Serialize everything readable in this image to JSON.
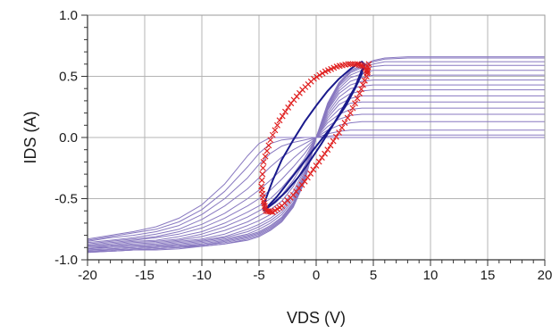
{
  "chart_data": {
    "type": "line",
    "xlabel": "VDS (V)",
    "ylabel": "IDS (A)",
    "xlim": [
      -20,
      20
    ],
    "ylim": [
      -1.0,
      1.0
    ],
    "x_ticks": [
      -20,
      -15,
      -10,
      -5,
      0,
      5,
      10,
      15,
      20
    ],
    "x_tick_labels": [
      "-20",
      "-15",
      "-10",
      "-5",
      "0",
      "5",
      "10",
      "15",
      "20"
    ],
    "y_ticks": [
      -1.0,
      -0.5,
      0.0,
      0.5,
      1.0
    ],
    "y_tick_labels": [
      "-1.0",
      "-0.5",
      "0.0",
      "0.5",
      "1.0"
    ],
    "grid": true,
    "legend": "none",
    "colors": {
      "curves": "#8878c0",
      "loop_measured": "#1a1a8c",
      "loop_simulated": "#e02020",
      "grid": "#b4b4b4",
      "axis": "#333333"
    },
    "curve_family": {
      "description_count": 18,
      "x": [
        -20,
        -18,
        -16,
        -14,
        -12,
        -10,
        -8,
        -6,
        -5,
        -4,
        -3,
        -2,
        -1,
        0,
        1,
        2,
        3,
        4,
        5,
        6,
        8,
        10,
        14,
        20
      ],
      "series": [
        {
          "values": [
            -0.83,
            -0.8,
            -0.77,
            -0.73,
            -0.66,
            -0.55,
            -0.38,
            -0.15,
            -0.05,
            0.0,
            0.0,
            0.0,
            0.0,
            0.0,
            0.0,
            0.0,
            0.0,
            0.0,
            0.0,
            0.0,
            0.0,
            0.0,
            0.0,
            0.0
          ]
        },
        {
          "values": [
            -0.84,
            -0.81,
            -0.78,
            -0.75,
            -0.69,
            -0.59,
            -0.44,
            -0.24,
            -0.13,
            -0.05,
            -0.02,
            -0.01,
            0.0,
            0.0,
            0.0,
            0.0,
            0.0,
            0.0,
            0.0,
            0.0,
            0.0,
            0.0,
            0.0,
            0.0
          ]
        },
        {
          "values": [
            -0.85,
            -0.82,
            -0.8,
            -0.77,
            -0.72,
            -0.63,
            -0.5,
            -0.33,
            -0.22,
            -0.13,
            -0.07,
            -0.04,
            -0.02,
            0.0,
            0.01,
            0.02,
            0.02,
            0.02,
            0.02,
            0.02,
            0.02,
            0.02,
            0.02,
            0.02
          ]
        },
        {
          "values": [
            -0.86,
            -0.84,
            -0.82,
            -0.79,
            -0.75,
            -0.67,
            -0.56,
            -0.42,
            -0.33,
            -0.24,
            -0.16,
            -0.1,
            -0.05,
            0.0,
            0.03,
            0.05,
            0.06,
            0.06,
            0.06,
            0.06,
            0.06,
            0.06,
            0.06,
            0.06
          ]
        },
        {
          "values": [
            -0.87,
            -0.85,
            -0.83,
            -0.81,
            -0.77,
            -0.71,
            -0.62,
            -0.5,
            -0.43,
            -0.35,
            -0.26,
            -0.17,
            -0.09,
            0.0,
            0.06,
            0.1,
            0.12,
            0.13,
            0.13,
            0.13,
            0.13,
            0.13,
            0.13,
            0.13
          ]
        },
        {
          "values": [
            -0.88,
            -0.86,
            -0.84,
            -0.82,
            -0.79,
            -0.74,
            -0.66,
            -0.56,
            -0.5,
            -0.43,
            -0.34,
            -0.24,
            -0.13,
            0.0,
            0.09,
            0.15,
            0.18,
            0.19,
            0.19,
            0.19,
            0.19,
            0.19,
            0.19,
            0.19
          ]
        },
        {
          "values": [
            -0.89,
            -0.87,
            -0.85,
            -0.84,
            -0.81,
            -0.77,
            -0.7,
            -0.61,
            -0.56,
            -0.5,
            -0.41,
            -0.3,
            -0.17,
            0.0,
            0.12,
            0.19,
            0.23,
            0.24,
            0.24,
            0.24,
            0.24,
            0.24,
            0.24,
            0.24
          ]
        },
        {
          "values": [
            -0.89,
            -0.88,
            -0.86,
            -0.85,
            -0.83,
            -0.79,
            -0.73,
            -0.65,
            -0.6,
            -0.55,
            -0.47,
            -0.35,
            -0.2,
            0.0,
            0.14,
            0.23,
            0.28,
            0.29,
            0.29,
            0.29,
            0.29,
            0.29,
            0.29,
            0.29
          ]
        },
        {
          "values": [
            -0.9,
            -0.89,
            -0.87,
            -0.86,
            -0.84,
            -0.81,
            -0.76,
            -0.69,
            -0.64,
            -0.59,
            -0.52,
            -0.4,
            -0.23,
            0.0,
            0.16,
            0.27,
            0.32,
            0.34,
            0.34,
            0.34,
            0.34,
            0.34,
            0.34,
            0.34
          ]
        },
        {
          "values": [
            -0.91,
            -0.89,
            -0.88,
            -0.87,
            -0.85,
            -0.83,
            -0.79,
            -0.72,
            -0.68,
            -0.63,
            -0.56,
            -0.44,
            -0.26,
            0.0,
            0.18,
            0.3,
            0.36,
            0.38,
            0.39,
            0.39,
            0.39,
            0.39,
            0.39,
            0.39
          ]
        },
        {
          "values": [
            -0.91,
            -0.9,
            -0.89,
            -0.88,
            -0.86,
            -0.84,
            -0.81,
            -0.75,
            -0.71,
            -0.66,
            -0.59,
            -0.47,
            -0.28,
            0.0,
            0.2,
            0.33,
            0.4,
            0.42,
            0.43,
            0.43,
            0.43,
            0.43,
            0.43,
            0.43
          ]
        },
        {
          "values": [
            -0.92,
            -0.91,
            -0.9,
            -0.89,
            -0.87,
            -0.85,
            -0.82,
            -0.77,
            -0.73,
            -0.68,
            -0.61,
            -0.49,
            -0.3,
            0.0,
            0.22,
            0.36,
            0.43,
            0.46,
            0.47,
            0.47,
            0.47,
            0.47,
            0.47,
            0.47
          ]
        },
        {
          "values": [
            -0.92,
            -0.91,
            -0.9,
            -0.89,
            -0.88,
            -0.86,
            -0.83,
            -0.79,
            -0.75,
            -0.7,
            -0.63,
            -0.51,
            -0.31,
            0.0,
            0.23,
            0.38,
            0.46,
            0.49,
            0.51,
            0.51,
            0.51,
            0.51,
            0.51,
            0.51
          ]
        },
        {
          "values": [
            -0.93,
            -0.92,
            -0.91,
            -0.9,
            -0.89,
            -0.87,
            -0.84,
            -0.8,
            -0.77,
            -0.72,
            -0.65,
            -0.53,
            -0.32,
            0.0,
            0.24,
            0.4,
            0.49,
            0.52,
            0.55,
            0.55,
            0.55,
            0.55,
            0.55,
            0.55
          ]
        },
        {
          "values": [
            -0.93,
            -0.92,
            -0.91,
            -0.9,
            -0.89,
            -0.88,
            -0.85,
            -0.81,
            -0.78,
            -0.73,
            -0.66,
            -0.54,
            -0.33,
            0.0,
            0.25,
            0.42,
            0.51,
            0.55,
            0.58,
            0.59,
            0.59,
            0.59,
            0.59,
            0.59
          ]
        },
        {
          "values": [
            -0.93,
            -0.93,
            -0.92,
            -0.91,
            -0.9,
            -0.88,
            -0.86,
            -0.82,
            -0.79,
            -0.74,
            -0.67,
            -0.55,
            -0.34,
            0.0,
            0.26,
            0.43,
            0.53,
            0.57,
            0.6,
            0.62,
            0.62,
            0.62,
            0.62,
            0.62
          ]
        },
        {
          "values": [
            -0.94,
            -0.93,
            -0.92,
            -0.91,
            -0.9,
            -0.89,
            -0.87,
            -0.83,
            -0.8,
            -0.75,
            -0.68,
            -0.56,
            -0.35,
            0.0,
            0.27,
            0.44,
            0.54,
            0.58,
            0.62,
            0.64,
            0.65,
            0.65,
            0.65,
            0.65
          ]
        },
        {
          "values": [
            -0.94,
            -0.93,
            -0.92,
            -0.92,
            -0.91,
            -0.89,
            -0.87,
            -0.84,
            -0.81,
            -0.76,
            -0.69,
            -0.57,
            -0.36,
            0.0,
            0.28,
            0.45,
            0.55,
            0.59,
            0.63,
            0.65,
            0.66,
            0.66,
            0.66,
            0.66
          ]
        }
      ]
    },
    "loop_measured": {
      "outer": {
        "x": [
          -4.6,
          -4.4,
          -3.8,
          -3.0,
          -2.0,
          -1.0,
          0.0,
          1.0,
          2.0,
          3.0,
          3.6,
          4.0,
          4.2
        ],
        "y": [
          -0.6,
          -0.5,
          -0.35,
          -0.18,
          -0.02,
          0.13,
          0.26,
          0.38,
          0.48,
          0.56,
          0.6,
          0.62,
          0.6
        ]
      },
      "inner": {
        "x": [
          4.2,
          4.0,
          3.4,
          2.6,
          1.6,
          0.6,
          -0.4,
          -1.4,
          -2.4,
          -3.4,
          -4.2,
          -4.6
        ],
        "y": [
          0.6,
          0.52,
          0.4,
          0.26,
          0.12,
          0.0,
          -0.12,
          -0.24,
          -0.36,
          -0.48,
          -0.56,
          -0.6
        ]
      },
      "return": {
        "x": [
          -4.6,
          -3.6,
          -2.6,
          -1.6,
          -0.6,
          0.4,
          1.4,
          2.4,
          3.4,
          4.2
        ],
        "y": [
          -0.6,
          -0.53,
          -0.44,
          -0.33,
          -0.2,
          -0.06,
          0.09,
          0.25,
          0.41,
          0.6
        ]
      }
    },
    "loop_simulated": {
      "x": [
        4.6,
        4.4,
        3.8,
        3.0,
        2.0,
        1.0,
        0.0,
        -1.0,
        -2.0,
        -3.0,
        -3.8,
        -4.4,
        -4.6,
        -4.8,
        -4.6,
        -4.0,
        -3.2,
        -2.2,
        -1.2,
        -0.2,
        0.8,
        1.8,
        2.8,
        3.6,
        4.2,
        4.6
      ],
      "y": [
        0.6,
        0.5,
        0.36,
        0.2,
        0.04,
        -0.1,
        -0.23,
        -0.36,
        -0.47,
        -0.56,
        -0.61,
        -0.6,
        -0.52,
        -0.4,
        -0.2,
        -0.02,
        0.14,
        0.28,
        0.39,
        0.48,
        0.54,
        0.58,
        0.6,
        0.6,
        0.58,
        0.52
      ]
    }
  }
}
